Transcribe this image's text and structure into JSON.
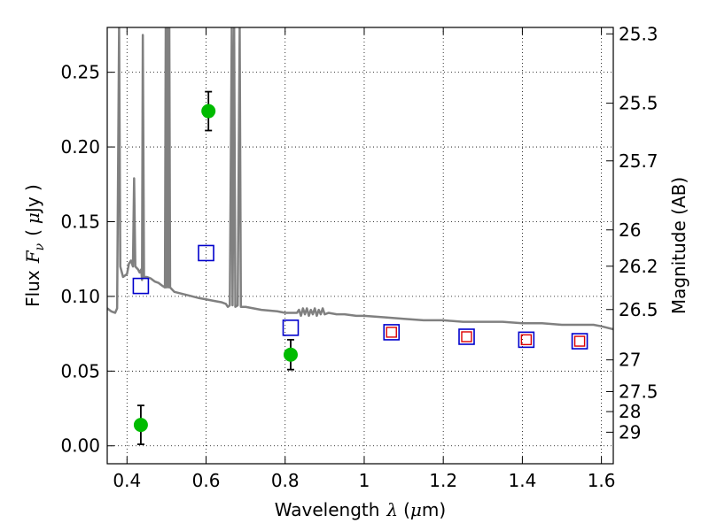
{
  "chart_data": {
    "type": "scatter",
    "title": "",
    "xlabel": "Wavelength",
    "xlabel_symbol": "λ",
    "xlabel_unit_open": "(",
    "xlabel_unit_mu": "μ",
    "xlabel_unit_rest": "m)",
    "ylabel": "Flux",
    "ylabel_symbol_F": "F",
    "ylabel_symbol_sub": "ν",
    "ylabel_unit_open": "(",
    "ylabel_unit_mu": "μ",
    "ylabel_unit_rest": "Jy )",
    "ylabel_right": "Magnitude (AB)",
    "xlim": [
      0.35,
      1.63
    ],
    "ylim": [
      -0.012,
      0.28
    ],
    "grid": true,
    "x_ticks": [
      {
        "value": 0.4,
        "label": "0.4"
      },
      {
        "value": 0.6,
        "label": "0.6"
      },
      {
        "value": 0.8,
        "label": "0.8"
      },
      {
        "value": 1.0,
        "label": "1"
      },
      {
        "value": 1.2,
        "label": "1.2"
      },
      {
        "value": 1.4,
        "label": "1.4"
      },
      {
        "value": 1.6,
        "label": "1.6"
      }
    ],
    "y_ticks": [
      {
        "value": 0.0,
        "label": "0.00"
      },
      {
        "value": 0.05,
        "label": "0.05"
      },
      {
        "value": 0.1,
        "label": "0.10"
      },
      {
        "value": 0.15,
        "label": "0.15"
      },
      {
        "value": 0.2,
        "label": "0.20"
      },
      {
        "value": 0.25,
        "label": "0.25"
      }
    ],
    "magnitude_ticks": [
      {
        "flux": 0.2757,
        "label": "25.3"
      },
      {
        "flux": 0.2293,
        "label": "25.5"
      },
      {
        "flux": 0.1907,
        "label": "25.7"
      },
      {
        "flux": 0.1445,
        "label": "26"
      },
      {
        "flux": 0.1202,
        "label": "26.2"
      },
      {
        "flux": 0.0912,
        "label": "26.5"
      },
      {
        "flux": 0.0575,
        "label": "27"
      },
      {
        "flux": 0.0363,
        "label": "27.5"
      },
      {
        "flux": 0.0229,
        "label": "28"
      },
      {
        "flux": 0.0091,
        "label": "29"
      }
    ],
    "series": [
      {
        "kind": "template_spectrum",
        "color": "#808080",
        "points": [
          [
            0.35,
            0.092
          ],
          [
            0.36,
            0.09
          ],
          [
            0.37,
            0.089
          ],
          [
            0.375,
            0.092
          ],
          [
            0.38,
            0.28
          ],
          [
            0.383,
            0.12
          ],
          [
            0.39,
            0.113
          ],
          [
            0.4,
            0.115
          ],
          [
            0.405,
            0.122
          ],
          [
            0.41,
            0.124
          ],
          [
            0.415,
            0.12
          ],
          [
            0.418,
            0.179
          ],
          [
            0.421,
            0.12
          ],
          [
            0.428,
            0.118
          ],
          [
            0.432,
            0.116
          ],
          [
            0.436,
            0.118
          ],
          [
            0.438,
            0.111
          ],
          [
            0.44,
            0.275
          ],
          [
            0.443,
            0.113
          ],
          [
            0.45,
            0.113
          ],
          [
            0.46,
            0.112
          ],
          [
            0.47,
            0.11
          ],
          [
            0.48,
            0.109
          ],
          [
            0.49,
            0.107
          ],
          [
            0.496,
            0.106
          ],
          [
            0.498,
            0.28
          ],
          [
            0.5,
            0.106
          ],
          [
            0.502,
            0.28
          ],
          [
            0.505,
            0.106
          ],
          [
            0.507,
            0.28
          ],
          [
            0.509,
            0.106
          ],
          [
            0.52,
            0.103
          ],
          [
            0.55,
            0.101
          ],
          [
            0.58,
            0.099
          ],
          [
            0.6,
            0.098
          ],
          [
            0.62,
            0.097
          ],
          [
            0.64,
            0.096
          ],
          [
            0.65,
            0.095
          ],
          [
            0.655,
            0.093
          ],
          [
            0.66,
            0.094
          ],
          [
            0.665,
            0.28
          ],
          [
            0.667,
            0.094
          ],
          [
            0.671,
            0.28
          ],
          [
            0.674,
            0.093
          ],
          [
            0.68,
            0.094
          ],
          [
            0.685,
            0.28
          ],
          [
            0.688,
            0.093
          ],
          [
            0.7,
            0.093
          ],
          [
            0.74,
            0.091
          ],
          [
            0.78,
            0.09
          ],
          [
            0.8,
            0.089
          ],
          [
            0.83,
            0.089
          ],
          [
            0.835,
            0.091
          ],
          [
            0.84,
            0.087
          ],
          [
            0.845,
            0.092
          ],
          [
            0.85,
            0.088
          ],
          [
            0.855,
            0.092
          ],
          [
            0.86,
            0.087
          ],
          [
            0.865,
            0.091
          ],
          [
            0.87,
            0.088
          ],
          [
            0.875,
            0.092
          ],
          [
            0.88,
            0.087
          ],
          [
            0.885,
            0.091
          ],
          [
            0.89,
            0.088
          ],
          [
            0.895,
            0.092
          ],
          [
            0.9,
            0.088
          ],
          [
            0.91,
            0.089
          ],
          [
            0.93,
            0.088
          ],
          [
            0.95,
            0.088
          ],
          [
            0.98,
            0.087
          ],
          [
            1.0,
            0.087
          ],
          [
            1.05,
            0.086
          ],
          [
            1.1,
            0.085
          ],
          [
            1.15,
            0.084
          ],
          [
            1.2,
            0.084
          ],
          [
            1.25,
            0.083
          ],
          [
            1.3,
            0.083
          ],
          [
            1.35,
            0.083
          ],
          [
            1.4,
            0.082
          ],
          [
            1.45,
            0.082
          ],
          [
            1.5,
            0.081
          ],
          [
            1.55,
            0.081
          ],
          [
            1.58,
            0.081
          ],
          [
            1.6,
            0.08
          ],
          [
            1.63,
            0.078
          ]
        ]
      },
      {
        "kind": "observed_flux",
        "color": "#00bb00",
        "points": [
          {
            "x": 0.435,
            "y": 0.014,
            "yerr": 0.013
          },
          {
            "x": 0.606,
            "y": 0.224,
            "yerr": 0.013
          },
          {
            "x": 0.814,
            "y": 0.061,
            "yerr": 0.01
          }
        ]
      },
      {
        "kind": "model_flux",
        "color": "#0000cc",
        "points": [
          {
            "x": 0.435,
            "y": 0.107
          },
          {
            "x": 0.6,
            "y": 0.129
          },
          {
            "x": 0.814,
            "y": 0.079
          },
          {
            "x": 1.069,
            "y": 0.076
          },
          {
            "x": 1.259,
            "y": 0.073
          },
          {
            "x": 1.41,
            "y": 0.071
          },
          {
            "x": 1.545,
            "y": 0.07
          }
        ]
      },
      {
        "kind": "upper_limit_flux",
        "color": "#dd0000",
        "points": [
          {
            "x": 1.069,
            "y": 0.076
          },
          {
            "x": 1.259,
            "y": 0.073
          },
          {
            "x": 1.41,
            "y": 0.071
          },
          {
            "x": 1.545,
            "y": 0.07
          }
        ]
      }
    ]
  }
}
